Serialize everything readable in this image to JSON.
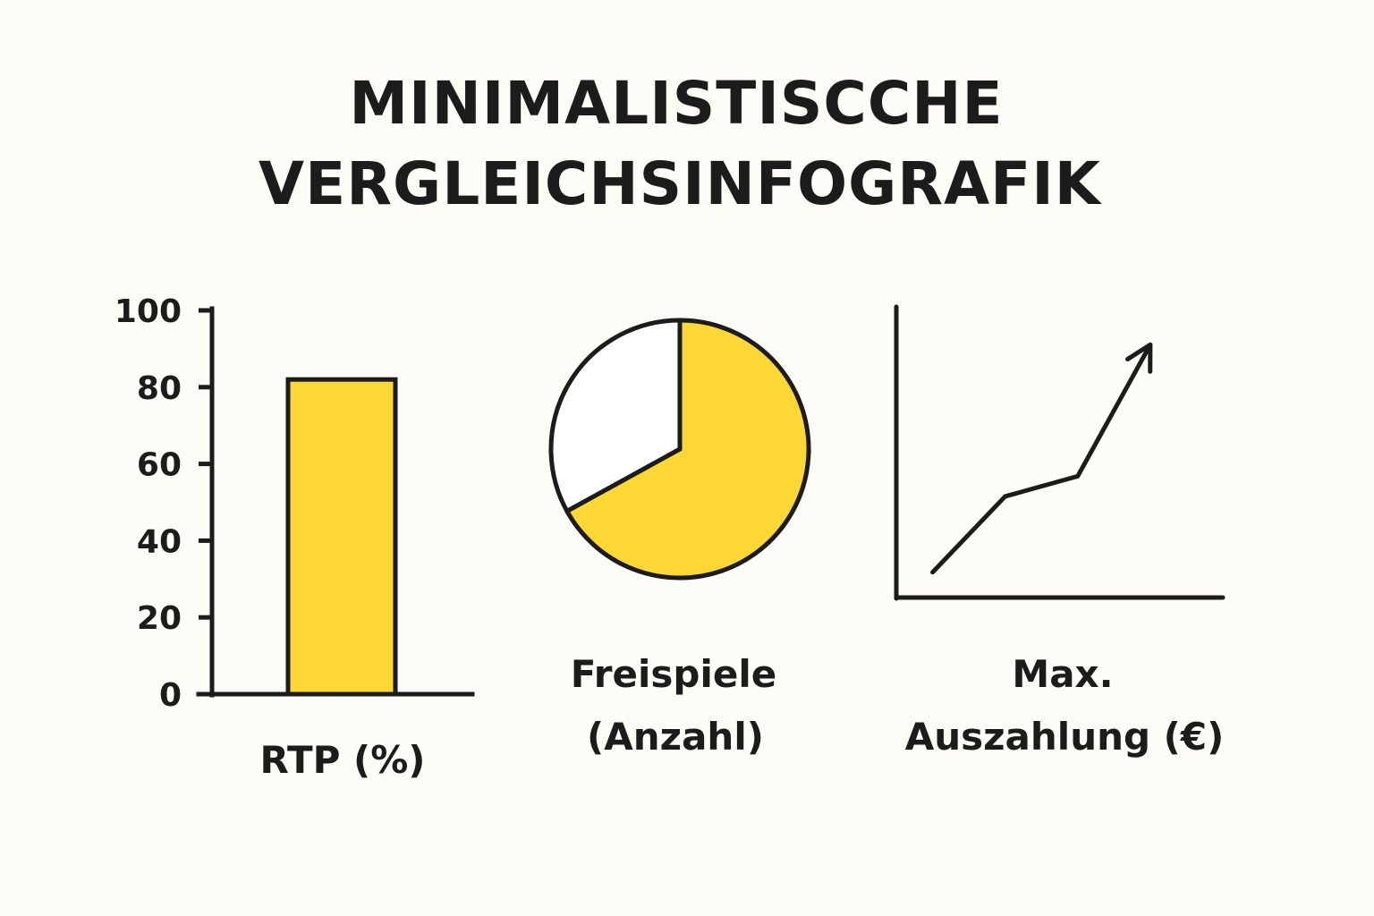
{
  "title": {
    "line1": "MINIMALISTISCCHE",
    "line2": "VERGLEICHSINFOGRAFIK"
  },
  "colors": {
    "accent": "#fdd835",
    "ink": "#1c1c1c",
    "background": "#fdfcf7",
    "slice_rest": "#ffffff"
  },
  "chart_data": [
    {
      "type": "bar",
      "title": "",
      "xlabel": "RTP (%)",
      "ylabel": "",
      "ylim": [
        0,
        100
      ],
      "yticks": [
        0,
        20,
        40,
        60,
        80,
        100
      ],
      "categories": [
        ""
      ],
      "values": [
        82
      ],
      "grid": false
    },
    {
      "type": "pie",
      "title": "",
      "caption": [
        "Freispiele",
        "(Anzahl)"
      ],
      "values": [
        67,
        33
      ],
      "colors": [
        "#fdd835",
        "#ffffff"
      ],
      "start_angle_deg": 0
    },
    {
      "type": "line",
      "title": "",
      "caption": [
        "Max.",
        "Auszahlung (€)"
      ],
      "x": [
        1,
        2,
        3,
        4
      ],
      "y": [
        1,
        4,
        4.8,
        10
      ],
      "ylim": [
        0,
        11.5
      ],
      "xlim": [
        0.5,
        5
      ],
      "axis_ticks": false,
      "arrow_at_end": true
    }
  ]
}
